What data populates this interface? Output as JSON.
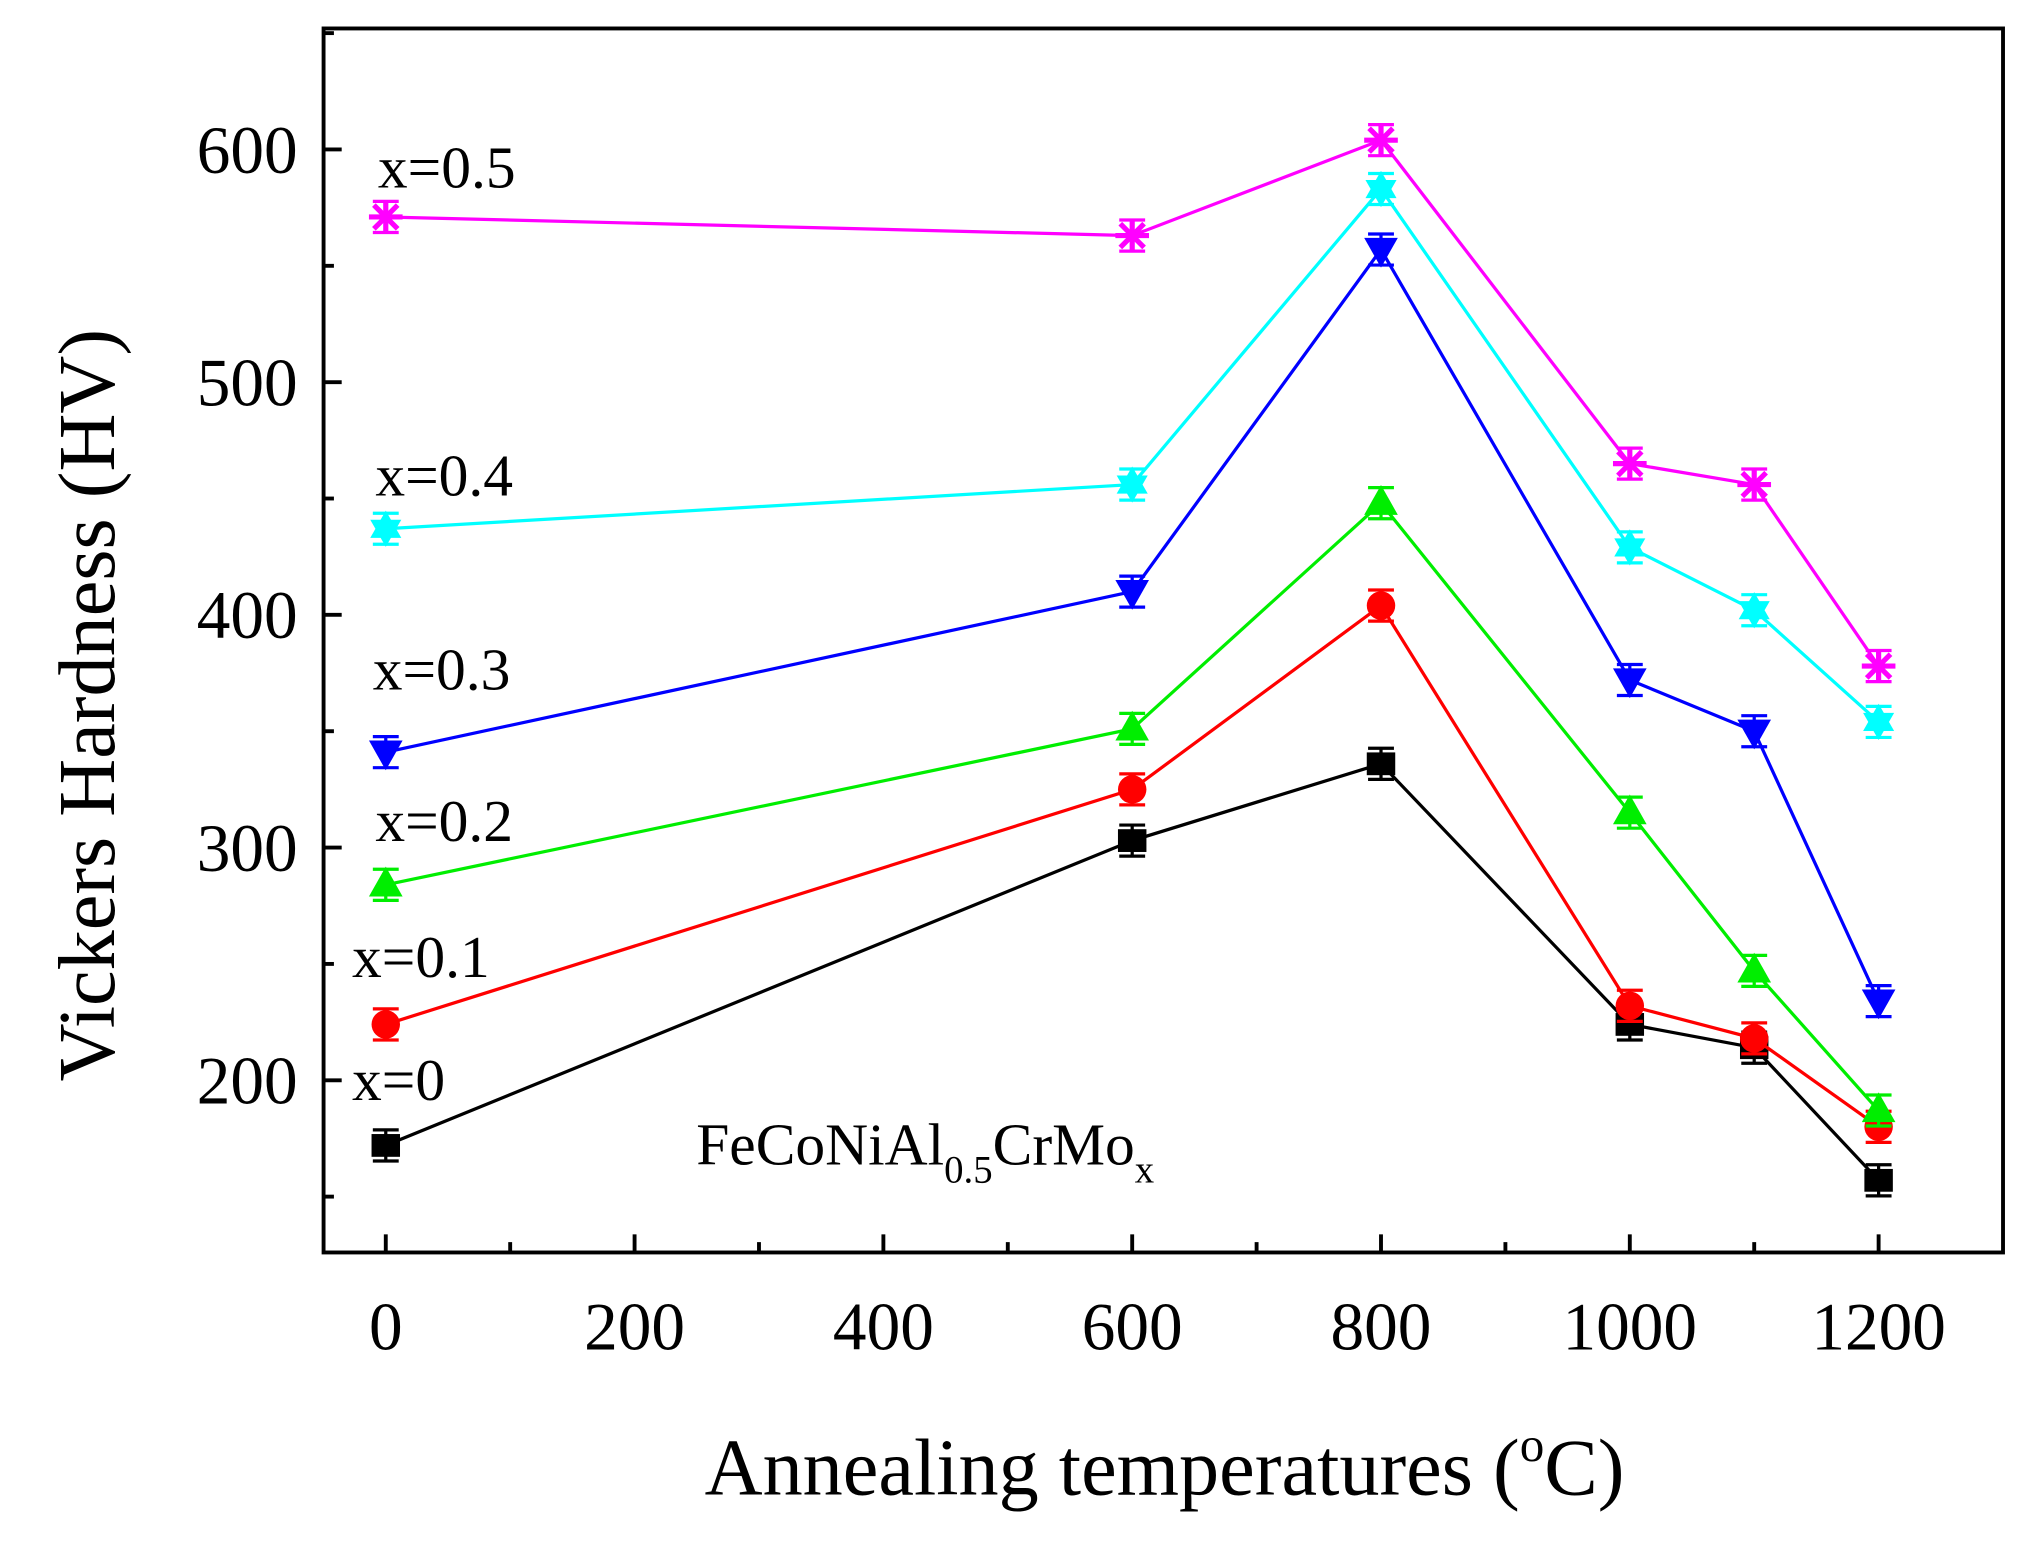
{
  "chart_data": {
    "type": "line",
    "title": "",
    "xlabel": "Annealing temperatures (",
    "xlabel_sup": "o",
    "xlabel_end": "C)",
    "ylabel": "Vickers Hardness (HV)",
    "xlim": [
      -50,
      1300
    ],
    "ylim": [
      126,
      652
    ],
    "xticks": [
      0,
      200,
      400,
      600,
      800,
      1000,
      1200
    ],
    "xtick_labels": [
      "0",
      "200",
      "400",
      "600",
      "800",
      "1000",
      "1200"
    ],
    "yticks": [
      200,
      300,
      400,
      500,
      600
    ],
    "ytick_labels": [
      "200",
      "300",
      "400",
      "500",
      "600"
    ],
    "grid": false,
    "annotation": {
      "base": "FeCoNiAl",
      "sub1": "0.5",
      "mid": "CrMo",
      "sub2": "x"
    },
    "x": [
      0,
      600,
      800,
      1000,
      1100,
      1200
    ],
    "series": [
      {
        "name": "x=0",
        "color": "#000000",
        "marker": "square",
        "values": [
          172,
          303,
          336,
          224,
          214,
          157
        ]
      },
      {
        "name": "x=0.1",
        "color": "#ff0000",
        "marker": "circle",
        "values": [
          224,
          325,
          404,
          232,
          218,
          180
        ]
      },
      {
        "name": "x=0.2",
        "color": "#00ee00",
        "marker": "triangle-up",
        "values": [
          284,
          351,
          448,
          315,
          247,
          187
        ]
      },
      {
        "name": "x=0.3",
        "color": "#0000ff",
        "marker": "triangle-down",
        "values": [
          341,
          410,
          557,
          372,
          350,
          234
        ]
      },
      {
        "name": "x=0.4",
        "color": "#00ffff",
        "marker": "star",
        "values": [
          437,
          456,
          583,
          429,
          402,
          354
        ]
      },
      {
        "name": "x=0.5",
        "color": "#ff00ff",
        "marker": "asterisk",
        "values": [
          571,
          563,
          604,
          465,
          456,
          378
        ]
      }
    ]
  }
}
